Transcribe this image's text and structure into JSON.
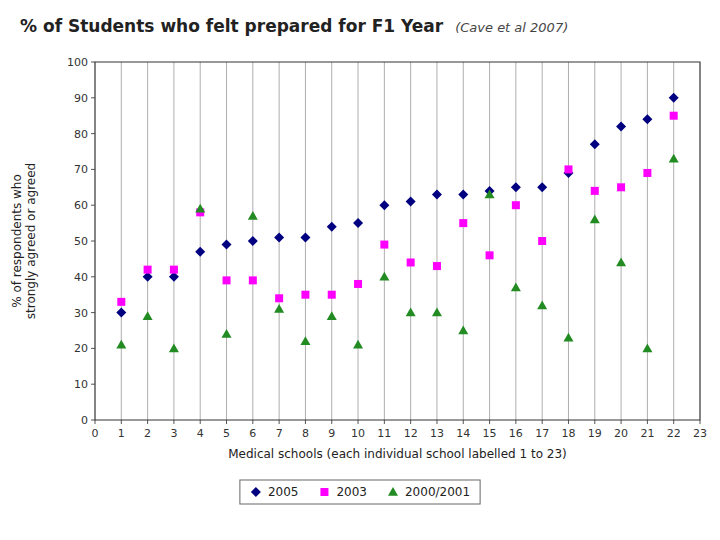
{
  "chart_data": {
    "type": "scatter",
    "title": "% of Students who felt prepared for F1 Year",
    "subtitle": "(Cave et al 2007)",
    "xlabel": "Medical schools (each individual school labelled 1 to 23)",
    "ylabel": "% of respondents who\nstrongly agreed or agreed",
    "x": [
      1,
      2,
      3,
      4,
      5,
      6,
      7,
      8,
      9,
      10,
      11,
      12,
      13,
      14,
      15,
      16,
      17,
      18,
      19,
      20,
      21,
      22
    ],
    "series": [
      {
        "name": "2005",
        "color": "#000080",
        "marker": "diamond",
        "values": [
          30,
          40,
          40,
          47,
          49,
          50,
          51,
          51,
          54,
          55,
          60,
          61,
          63,
          63,
          64,
          65,
          65,
          69,
          77,
          82,
          84,
          90
        ]
      },
      {
        "name": "2003",
        "color": "#FF00FF",
        "marker": "square",
        "values": [
          33,
          42,
          42,
          58,
          39,
          39,
          34,
          35,
          35,
          38,
          49,
          44,
          43,
          55,
          46,
          60,
          50,
          70,
          64,
          65,
          69,
          85
        ]
      },
      {
        "name": "2000/2001",
        "color": "#228B22",
        "marker": "triangle",
        "values": [
          21,
          29,
          20,
          59,
          24,
          57,
          31,
          22,
          29,
          21,
          40,
          30,
          30,
          25,
          63,
          37,
          32,
          23,
          56,
          44,
          20,
          73
        ]
      }
    ],
    "xlim": [
      0,
      23
    ],
    "ylim": [
      0,
      100
    ],
    "xticks": [
      0,
      1,
      2,
      3,
      4,
      5,
      6,
      7,
      8,
      9,
      10,
      11,
      12,
      13,
      14,
      15,
      16,
      17,
      18,
      19,
      20,
      21,
      22,
      23
    ],
    "yticks": [
      0,
      10,
      20,
      30,
      40,
      50,
      60,
      70,
      80,
      90,
      100
    ],
    "grid": "x",
    "legend": "bottom"
  }
}
